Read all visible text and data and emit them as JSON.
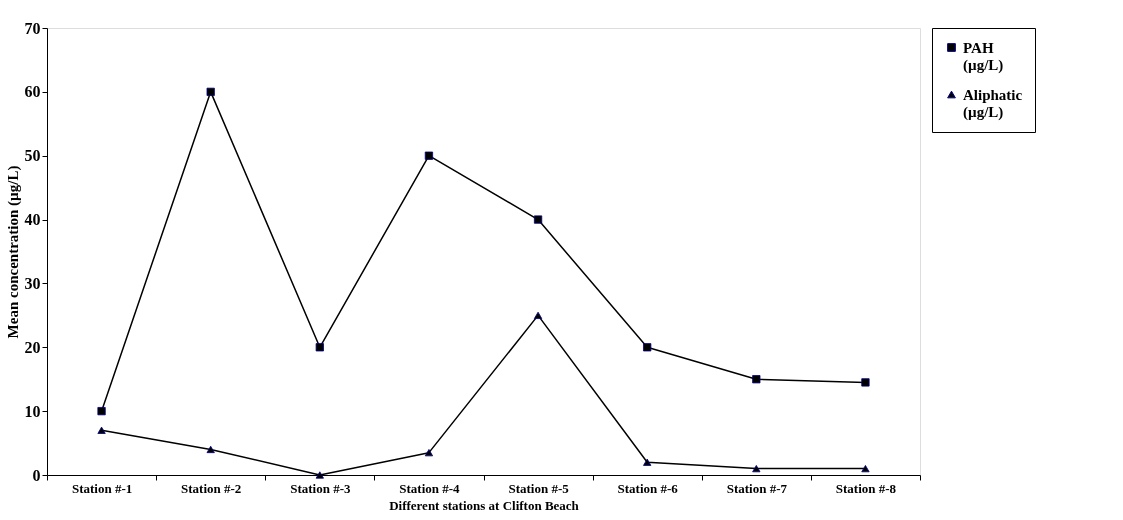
{
  "chart_data": {
    "type": "line",
    "xlabel": "Different stations at Clifton Beach",
    "ylabel": "Mean concentration (µg/L)",
    "categories": [
      "Station #-1",
      "Station #-2",
      "Station #-3",
      "Station #-4",
      "Station #-5",
      "Station #-6",
      "Station #-7",
      "Station #-8"
    ],
    "series": [
      {
        "name": "PAH (µg/L)",
        "color": "#000000",
        "marker": "square",
        "values": [
          10,
          60,
          20,
          50,
          40,
          20,
          15,
          14.5
        ]
      },
      {
        "name": "Aliphatic (µg/L)",
        "color": "#000000",
        "marker": "triangle",
        "values": [
          7,
          4,
          0,
          3.5,
          25,
          2,
          1,
          1
        ]
      }
    ],
    "ylim": [
      0,
      70
    ],
    "yticks": [
      0,
      10,
      20,
      30,
      40,
      50,
      60,
      70
    ],
    "grid": false,
    "legend": "right",
    "line_style": "solid"
  }
}
